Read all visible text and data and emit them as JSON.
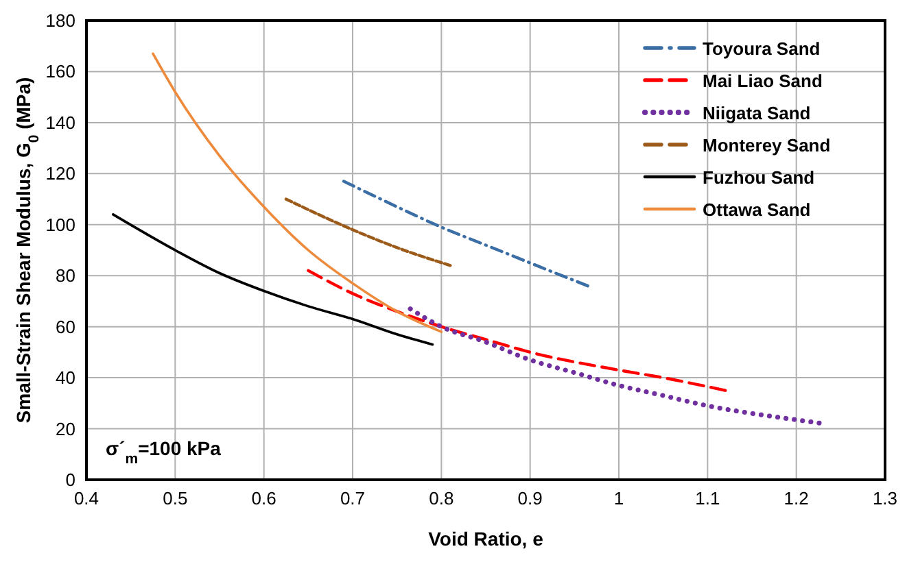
{
  "chart_data": {
    "type": "line",
    "xlabel": "Void Ratio, e",
    "ylabel": "Small-Strain Shear Modulus, G$_{0}$ (MPa)",
    "xlim": [
      0.4,
      1.3
    ],
    "xticks": [
      0.4,
      0.5,
      0.6,
      0.7,
      0.8,
      0.9,
      {
        "value": 1,
        "label": "1"
      },
      1.1,
      1.2,
      1.3
    ],
    "ylim": [
      0,
      180
    ],
    "yticks": [
      0,
      20,
      40,
      60,
      80,
      100,
      120,
      140,
      160,
      180
    ],
    "grid": true,
    "legend": "top right",
    "annotations": [
      "σ´$_{m}$=100 kPa"
    ],
    "series": [
      {
        "name": "Toyoura Sand",
        "color": "#3a6ea5",
        "line_style": "dashdot",
        "x": [
          0.69,
          0.75,
          0.8,
          0.85,
          0.9,
          0.965
        ],
        "values": [
          117,
          107,
          99,
          92,
          85,
          76
        ]
      },
      {
        "name": "Mai Liao Sand",
        "color": "#ff0000",
        "line_style": "dashed",
        "x": [
          0.65,
          0.7,
          0.75,
          0.8,
          0.85,
          0.9,
          1.0,
          1.05,
          1.12
        ],
        "values": [
          82,
          73,
          66,
          60,
          55,
          50,
          43,
          40,
          35
        ]
      },
      {
        "name": "Niigata Sand",
        "color": "#7030a0",
        "line_style": "dotted",
        "x": [
          0.765,
          0.8,
          0.85,
          0.9,
          0.95,
          1.0,
          1.05,
          1.1,
          1.15,
          1.2,
          1.23
        ],
        "values": [
          67,
          60,
          54,
          47,
          42,
          37,
          33,
          29,
          26,
          23.5,
          22
        ]
      },
      {
        "name": "Monterey Sand",
        "color": "#9c5b1a",
        "line_style": "dashed",
        "x": [
          0.625,
          0.7,
          0.75,
          0.81
        ],
        "values": [
          110,
          98,
          91,
          84
        ]
      },
      {
        "name": "Fuzhou Sand",
        "color": "#000000",
        "line_style": "solid",
        "x": [
          0.43,
          0.5,
          0.55,
          0.6,
          0.65,
          0.7,
          0.75,
          0.79
        ],
        "values": [
          104,
          90,
          81,
          74,
          68,
          63,
          57,
          53
        ]
      },
      {
        "name": "Ottawa Sand",
        "color": "#ee8a3c",
        "line_style": "solid",
        "x": [
          0.475,
          0.5,
          0.55,
          0.6,
          0.65,
          0.7,
          0.75,
          0.8
        ],
        "values": [
          167,
          152,
          127,
          107,
          90,
          77,
          66,
          58
        ]
      }
    ]
  }
}
